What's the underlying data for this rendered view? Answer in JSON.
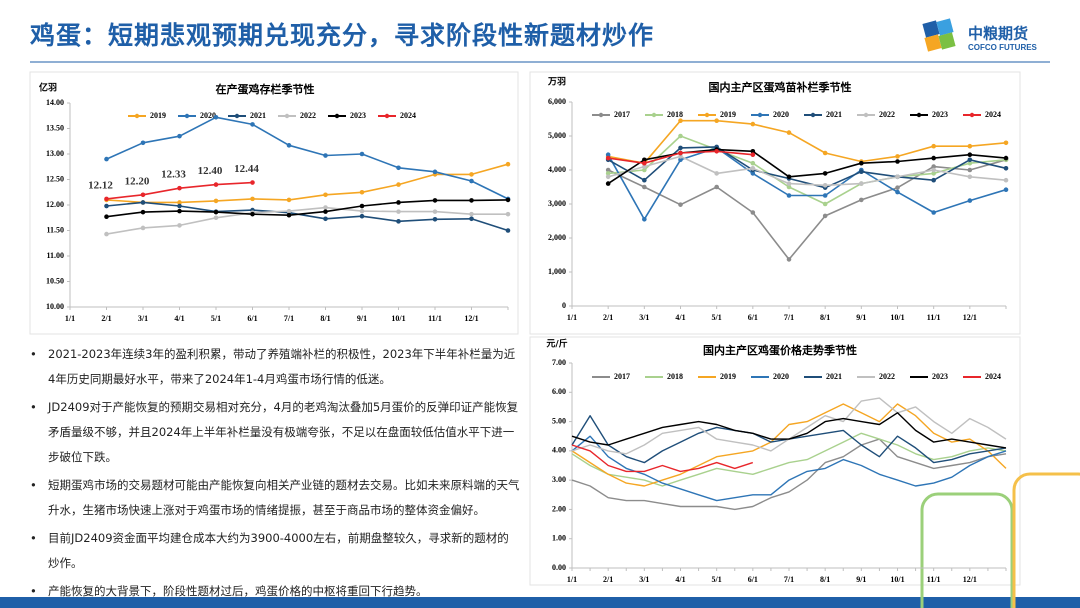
{
  "header": {
    "title": "鸡蛋：短期悲观预期兑现充分，寻求阶段性新题材炒作",
    "logo": {
      "name": "中粮期货",
      "english": "COFCO FUTURES"
    }
  },
  "chart_data": [
    {
      "type": "line",
      "title": "在产蛋鸡存栏季节性",
      "y_unit": "亿羽",
      "categories": [
        "1/1",
        "2/1",
        "3/1",
        "4/1",
        "5/1",
        "6/1",
        "7/1",
        "8/1",
        "9/1",
        "10/1",
        "11/1",
        "12/1",
        null
      ],
      "ylim": [
        10,
        14
      ],
      "yticks": [
        {
          "value": 10,
          "label": "10.00"
        },
        {
          "value": 10.5,
          "label": "10.50"
        },
        {
          "value": 11,
          "label": "11.00"
        },
        {
          "value": 11.5,
          "label": "11.50"
        },
        {
          "value": 12,
          "label": "12.00"
        },
        {
          "value": 12.5,
          "label": "12.50"
        },
        {
          "value": 13,
          "label": "13.00"
        },
        {
          "value": 13.5,
          "label": "13.50"
        },
        {
          "value": 14,
          "label": "14.00"
        }
      ],
      "grid": false,
      "legend": "top",
      "markers": true,
      "series": [
        {
          "name": "2019",
          "color": "#f5a623",
          "values": [
            null,
            12.1,
            12.05,
            12.05,
            12.08,
            12.12,
            12.1,
            12.2,
            12.25,
            12.4,
            12.6,
            12.6,
            12.8
          ]
        },
        {
          "name": "2020",
          "color": "#2e75b6",
          "values": [
            null,
            12.9,
            13.22,
            13.35,
            13.72,
            13.58,
            13.17,
            12.97,
            13.0,
            12.73,
            12.65,
            12.47,
            12.12
          ]
        },
        {
          "name": "2021",
          "color": "#1f4e79",
          "values": [
            null,
            11.98,
            12.05,
            11.98,
            11.87,
            11.9,
            11.85,
            11.73,
            11.78,
            11.68,
            11.72,
            11.73,
            11.5
          ]
        },
        {
          "name": "2022",
          "color": "#c0c0c0",
          "values": [
            null,
            11.43,
            11.55,
            11.6,
            11.75,
            11.85,
            11.88,
            11.95,
            11.88,
            11.87,
            11.87,
            11.82,
            11.82
          ]
        },
        {
          "name": "2023",
          "color": "#000000",
          "values": [
            null,
            11.77,
            11.86,
            11.88,
            11.86,
            11.82,
            11.8,
            11.87,
            11.98,
            12.05,
            12.09,
            12.09,
            12.1
          ]
        },
        {
          "name": "2024",
          "color": "#e8262b",
          "values": [
            null,
            12.12,
            12.2,
            12.33,
            12.4,
            12.44,
            null,
            null,
            null,
            null,
            null,
            null,
            null
          ],
          "value_labels": [
            null,
            "12.12",
            "12.20",
            "12.33",
            "12.40",
            "12.44",
            null,
            null,
            null,
            null,
            null,
            null,
            null
          ]
        }
      ]
    },
    {
      "type": "line",
      "title": "国内主产区蛋鸡苗补栏季节性",
      "y_unit": "万羽",
      "categories": [
        "1/1",
        "2/1",
        "3/1",
        "4/1",
        "5/1",
        "6/1",
        "7/1",
        "8/1",
        "9/1",
        "10/1",
        "11/1",
        "12/1",
        null
      ],
      "ylim": [
        0,
        6000
      ],
      "yticks": [
        0,
        {
          "value": 1000,
          "label": "1,000"
        },
        {
          "value": 2000,
          "label": "2,000"
        },
        {
          "value": 3000,
          "label": "3,000"
        },
        {
          "value": 4000,
          "label": "4,000"
        },
        {
          "value": 5000,
          "label": "5,000"
        },
        {
          "value": 6000,
          "label": "6,000"
        }
      ],
      "grid": false,
      "legend": "top",
      "markers": true,
      "series": [
        {
          "name": "2017",
          "color": "#8c8c8c",
          "values": [
            null,
            4000,
            3500,
            2980,
            3500,
            2750,
            1370,
            2650,
            3120,
            3480,
            4100,
            4000,
            4300
          ]
        },
        {
          "name": "2018",
          "color": "#a9d18e",
          "values": [
            null,
            3900,
            4000,
            5000,
            4600,
            4200,
            3500,
            3000,
            3600,
            3800,
            3900,
            4200,
            4300
          ]
        },
        {
          "name": "2019",
          "color": "#f5a623",
          "values": [
            null,
            4400,
            4200,
            5450,
            5450,
            5350,
            5100,
            4500,
            4250,
            4400,
            4700,
            4700,
            4800
          ]
        },
        {
          "name": "2020",
          "color": "#2e75b6",
          "values": [
            null,
            4450,
            2550,
            4300,
            4650,
            3900,
            3250,
            3250,
            4000,
            3350,
            2750,
            3100,
            3420
          ]
        },
        {
          "name": "2021",
          "color": "#1f4e79",
          "values": [
            null,
            4300,
            3700,
            4650,
            4680,
            4000,
            3750,
            3480,
            3950,
            3800,
            3700,
            4300,
            4050
          ]
        },
        {
          "name": "2022",
          "color": "#c0c0c0",
          "values": [
            null,
            3800,
            4100,
            4400,
            3900,
            4050,
            3600,
            3550,
            3600,
            3800,
            4000,
            3800,
            3700
          ]
        },
        {
          "name": "2023",
          "color": "#000000",
          "values": [
            null,
            3600,
            4300,
            4500,
            4600,
            4550,
            3800,
            3900,
            4200,
            4250,
            4350,
            4450,
            4350
          ]
        },
        {
          "name": "2024",
          "color": "#e8262b",
          "values": [
            null,
            4350,
            4200,
            4500,
            4550,
            4450,
            null,
            null,
            null,
            null,
            null,
            null,
            null
          ]
        }
      ]
    },
    {
      "type": "line",
      "title": "国内主产区鸡蛋价格走势季节性",
      "y_unit": "元/斤",
      "categories": [
        "1/1",
        null,
        "2/1",
        null,
        "3/1",
        null,
        "4/1",
        null,
        "5/1",
        null,
        "6/1",
        null,
        "7/1",
        null,
        "8/1",
        null,
        "9/1",
        null,
        "10/1",
        null,
        "11/1",
        null,
        "12/1",
        null,
        null
      ],
      "ylim": [
        0,
        7
      ],
      "yticks": [
        {
          "value": 0,
          "label": "0.00"
        },
        {
          "value": 1,
          "label": "1.00"
        },
        {
          "value": 2,
          "label": "2.00"
        },
        {
          "value": 3,
          "label": "3.00"
        },
        {
          "value": 4,
          "label": "4.00"
        },
        {
          "value": 5,
          "label": "5.00"
        },
        {
          "value": 6,
          "label": "6.00"
        },
        {
          "value": 7,
          "label": "7.00"
        }
      ],
      "grid": false,
      "legend": "top",
      "markers": false,
      "series": [
        {
          "name": "2017",
          "color": "#8c8c8c",
          "values": [
            3.0,
            2.8,
            2.4,
            2.3,
            2.3,
            2.2,
            2.1,
            2.1,
            2.1,
            2.0,
            2.1,
            2.4,
            2.6,
            3.0,
            3.6,
            3.8,
            4.2,
            4.4,
            3.8,
            3.6,
            3.4,
            3.5,
            3.6,
            3.8,
            3.9
          ]
        },
        {
          "name": "2018",
          "color": "#a9d18e",
          "values": [
            3.9,
            3.5,
            3.2,
            3.1,
            3.0,
            2.8,
            3.0,
            3.2,
            3.4,
            3.3,
            3.2,
            3.4,
            3.6,
            3.7,
            4.0,
            4.3,
            4.6,
            4.4,
            4.2,
            3.9,
            3.7,
            3.8,
            4.0,
            4.1,
            4.0
          ]
        },
        {
          "name": "2019",
          "color": "#f5a623",
          "values": [
            4.0,
            3.6,
            3.2,
            2.9,
            2.8,
            3.0,
            3.2,
            3.5,
            3.8,
            3.9,
            4.0,
            4.3,
            4.9,
            5.0,
            5.3,
            5.6,
            5.3,
            5.0,
            5.6,
            5.2,
            4.6,
            4.3,
            4.4,
            4.0,
            3.4
          ]
        },
        {
          "name": "2020",
          "color": "#2e75b6",
          "values": [
            4.0,
            4.5,
            3.8,
            3.4,
            3.2,
            2.9,
            2.7,
            2.5,
            2.3,
            2.4,
            2.5,
            2.5,
            3.0,
            3.3,
            3.4,
            3.7,
            3.5,
            3.2,
            3.0,
            2.8,
            2.9,
            3.1,
            3.5,
            3.8,
            4.0
          ]
        },
        {
          "name": "2021",
          "color": "#1f4e79",
          "values": [
            4.2,
            5.2,
            4.2,
            3.8,
            3.6,
            4.0,
            4.3,
            4.6,
            4.8,
            4.7,
            4.6,
            4.3,
            4.4,
            4.5,
            4.6,
            4.7,
            4.2,
            3.8,
            4.5,
            4.1,
            3.6,
            3.7,
            3.9,
            4.0,
            4.1
          ]
        },
        {
          "name": "2022",
          "color": "#c0c0c0",
          "values": [
            4.0,
            4.2,
            4.0,
            3.9,
            4.2,
            4.6,
            4.7,
            4.8,
            4.4,
            4.3,
            4.2,
            4.0,
            4.4,
            4.8,
            5.2,
            5.0,
            5.7,
            5.8,
            5.3,
            5.5,
            5.0,
            4.6,
            5.1,
            4.8,
            4.4
          ]
        },
        {
          "name": "2023",
          "color": "#000000",
          "values": [
            4.5,
            4.3,
            4.2,
            4.4,
            4.6,
            4.8,
            4.9,
            5.0,
            4.9,
            4.7,
            4.6,
            4.4,
            4.4,
            4.6,
            5.0,
            5.1,
            5.0,
            4.9,
            5.3,
            4.7,
            4.3,
            4.4,
            4.3,
            4.2,
            4.1
          ]
        },
        {
          "name": "2024",
          "color": "#e8262b",
          "values": [
            4.2,
            4.0,
            3.5,
            3.3,
            3.3,
            3.5,
            3.3,
            3.4,
            3.6,
            3.4,
            3.6,
            null,
            null,
            null,
            null,
            null,
            null,
            null,
            null,
            null,
            null,
            null,
            null,
            null,
            null
          ]
        }
      ]
    }
  ],
  "bullets": [
    "2021-2023年连续3年的盈利积累，带动了养殖端补栏的积极性，2023年下半年补栏量为近4年历史同期最好水平，带来了2024年1-4月鸡蛋市场行情的低迷。",
    "JD2409对于产能恢复的预期交易相对充分，4月的老鸡淘汰叠加5月蛋价的反弹印证产能恢复矛盾量级不够，并且2024年上半年补栏量没有极端夸张，不足以在盘面较低估值水平下进一步破位下跌。",
    "短期蛋鸡市场的交易题材可能由产能恢复向相关产业链的题材去交易。比如未来原料端的天气升水，生猪市场快速上涨对于鸡蛋市场的情绪提振，甚至于商品市场的整体资金偏好。",
    "目前JD2409资金面平均建仓成本大约为3900-4000左右，前期盘整较久，寻求新的题材的炒作。",
    "产能恢复的大背景下，阶段性题材过后，鸡蛋价格的中枢将重回下行趋势。"
  ]
}
